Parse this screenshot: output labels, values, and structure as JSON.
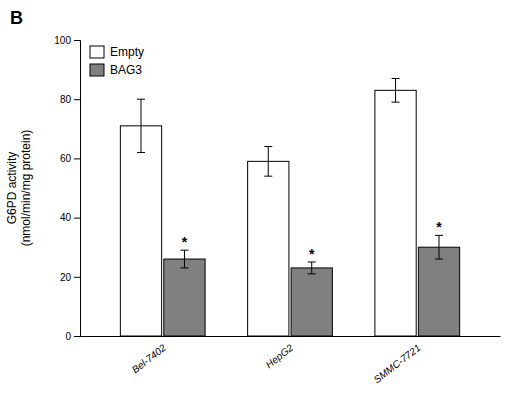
{
  "chart_data": {
    "type": "bar",
    "title": "B",
    "categories": [
      "Bel-7402",
      "HepG2",
      "SMMC-7721"
    ],
    "series": [
      {
        "name": "Empty",
        "color": "#ffffff",
        "values": [
          71,
          59,
          83
        ],
        "errors": [
          9,
          5,
          4
        ]
      },
      {
        "name": "BAG3",
        "color": "#808080",
        "values": [
          26,
          23,
          30
        ],
        "errors": [
          3,
          2,
          4
        ]
      }
    ],
    "y_label": "G6PD activity\n(nmol/min/mg protein)",
    "ylim": [
      0,
      100
    ],
    "yticks": [
      0,
      20,
      40,
      60,
      80,
      100
    ],
    "grid": false,
    "legend": "upper-left",
    "annotations": [
      {
        "text": "*",
        "category": "Bel-7402",
        "series": "BAG3"
      },
      {
        "text": "*",
        "category": "HepG2",
        "series": "BAG3"
      },
      {
        "text": "*",
        "category": "SMMC-7721",
        "series": "BAG3"
      }
    ]
  }
}
